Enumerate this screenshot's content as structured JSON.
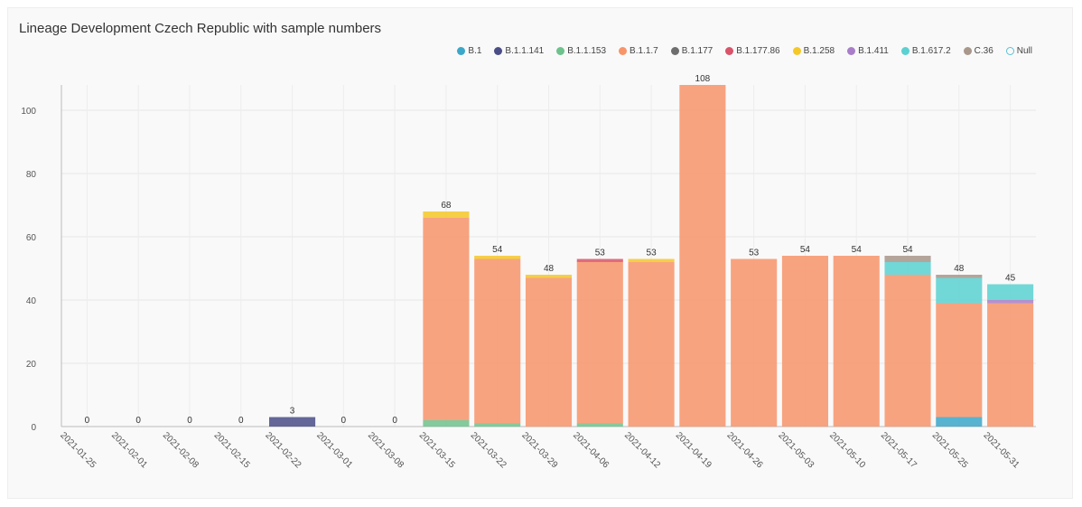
{
  "chart_data": {
    "type": "bar",
    "stacked": true,
    "title": "Lineage Development Czech Republic with sample numbers",
    "xlabel": "",
    "ylabel": "",
    "ylim": [
      0,
      108
    ],
    "yticks": [
      0,
      20,
      40,
      60,
      80,
      100
    ],
    "grid": true,
    "legend_position": "top-right",
    "categories": [
      "2021-01-25",
      "2021-02-01",
      "2021-02-08",
      "2021-02-15",
      "2021-02-22",
      "2021-03-01",
      "2021-03-08",
      "2021-03-15",
      "2021-03-22",
      "2021-03-29",
      "2021-04-06",
      "2021-04-12",
      "2021-04-19",
      "2021-04-26",
      "2021-05-03",
      "2021-05-10",
      "2021-05-17",
      "2021-05-25",
      "2021-05-31"
    ],
    "totals": [
      0,
      0,
      0,
      0,
      3,
      0,
      0,
      68,
      54,
      48,
      53,
      53,
      108,
      53,
      54,
      54,
      54,
      48,
      45
    ],
    "series": [
      {
        "name": "B.1",
        "color": "#3ba7c9",
        "hollow": false,
        "values": [
          0,
          0,
          0,
          0,
          0,
          0,
          0,
          0,
          0,
          0,
          0,
          0,
          0,
          0,
          0,
          0,
          0,
          3,
          0
        ]
      },
      {
        "name": "B.1.1.141",
        "color": "#4a4e86",
        "hollow": false,
        "values": [
          0,
          0,
          0,
          0,
          3,
          0,
          0,
          0,
          0,
          0,
          0,
          0,
          0,
          0,
          0,
          0,
          0,
          0,
          0
        ]
      },
      {
        "name": "B.1.1.153",
        "color": "#6ec28c",
        "hollow": false,
        "values": [
          0,
          0,
          0,
          0,
          0,
          0,
          0,
          2,
          1,
          0,
          1,
          0,
          0,
          0,
          0,
          0,
          0,
          0,
          0
        ]
      },
      {
        "name": "B.1.1.7",
        "color": "#f8946a",
        "hollow": false,
        "values": [
          0,
          0,
          0,
          0,
          0,
          0,
          0,
          64,
          52,
          47,
          51,
          52,
          108,
          53,
          54,
          54,
          48,
          36,
          39
        ]
      },
      {
        "name": "B.1.177",
        "color": "#6e6e6e",
        "hollow": false,
        "values": [
          0,
          0,
          0,
          0,
          0,
          0,
          0,
          0,
          0,
          0,
          0,
          0,
          0,
          0,
          0,
          0,
          0,
          0,
          0
        ]
      },
      {
        "name": "B.1.177.86",
        "color": "#d9546a",
        "hollow": false,
        "values": [
          0,
          0,
          0,
          0,
          0,
          0,
          0,
          0,
          0,
          0,
          1,
          0,
          0,
          0,
          0,
          0,
          0,
          0,
          0
        ]
      },
      {
        "name": "B.1.258",
        "color": "#f5c828",
        "hollow": false,
        "values": [
          0,
          0,
          0,
          0,
          0,
          0,
          0,
          2,
          1,
          1,
          0,
          1,
          0,
          0,
          0,
          0,
          0,
          0,
          0
        ]
      },
      {
        "name": "B.1.411",
        "color": "#a97ec9",
        "hollow": false,
        "values": [
          0,
          0,
          0,
          0,
          0,
          0,
          0,
          0,
          0,
          0,
          0,
          0,
          0,
          0,
          0,
          0,
          0,
          0,
          1
        ]
      },
      {
        "name": "B.1.617.2",
        "color": "#5bd1d1",
        "hollow": false,
        "values": [
          0,
          0,
          0,
          0,
          0,
          0,
          0,
          0,
          0,
          0,
          0,
          0,
          0,
          0,
          0,
          0,
          4,
          8,
          5
        ]
      },
      {
        "name": "C.36",
        "color": "#a8978b",
        "hollow": false,
        "values": [
          0,
          0,
          0,
          0,
          0,
          0,
          0,
          0,
          0,
          0,
          0,
          0,
          0,
          0,
          0,
          0,
          2,
          1,
          0
        ]
      },
      {
        "name": "Null",
        "color": "#5bc0d6",
        "hollow": true,
        "values": [
          0,
          0,
          0,
          0,
          0,
          0,
          0,
          0,
          0,
          0,
          0,
          0,
          0,
          0,
          0,
          0,
          0,
          0,
          0
        ]
      }
    ]
  }
}
